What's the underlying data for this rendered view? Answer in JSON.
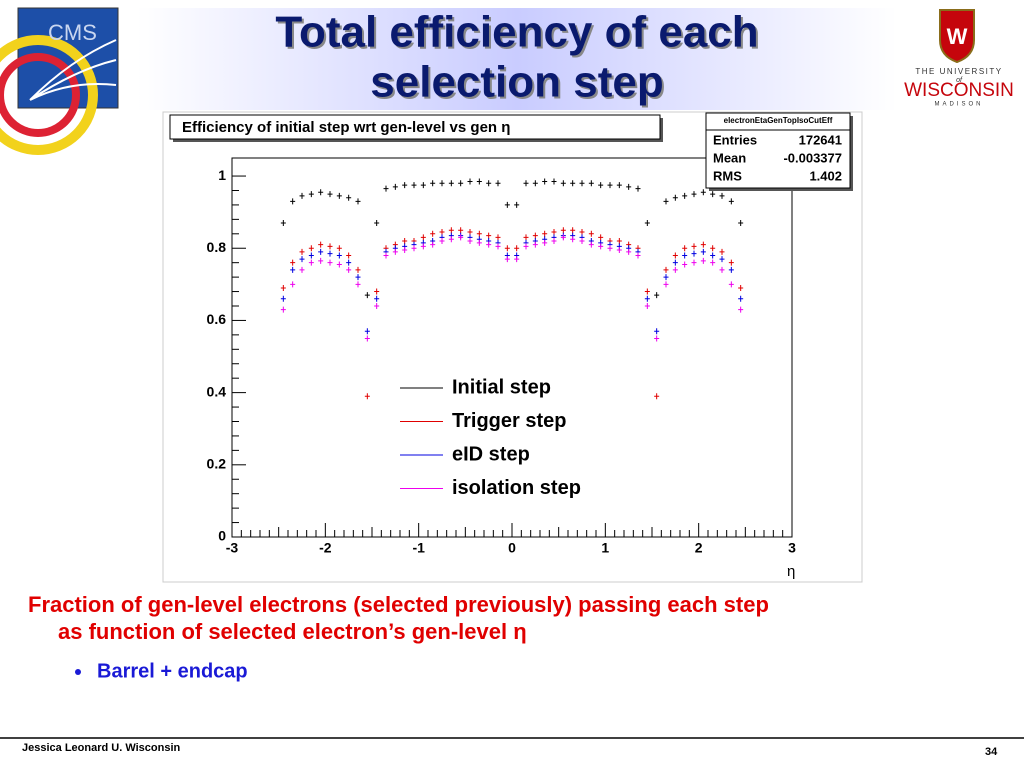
{
  "slide": {
    "title_lines": [
      "Total efficiency of each",
      "selection step"
    ],
    "body_lines": [
      "Fraction of gen-level electrons (selected previously) passing each step",
      "as function of selected electron’s gen-level η"
    ],
    "bullet": "Barrel + endcap",
    "footer": "Jessica Leonard U. Wisconsin",
    "page_number": "34",
    "logos": {
      "cms": "CMS",
      "university_top": "THE UNIVERSITY",
      "university_of": "of",
      "university_name": "WISCONSIN",
      "university_city": "MADISON"
    }
  },
  "chart_data": {
    "type": "scatter",
    "title": "Efficiency of initial step wrt gen-level vs gen η",
    "x_label": "η",
    "stats": {
      "name": "electronEtaGenTopIsoCutEff",
      "labels": [
        "Entries",
        "Mean",
        "RMS"
      ],
      "values": [
        172641,
        -0.003377,
        1.402
      ]
    },
    "xlim": [
      -3,
      3
    ],
    "ylim": [
      0,
      1.05
    ],
    "xticks": [
      -3,
      -2,
      -1,
      0,
      1,
      2,
      3
    ],
    "yticks": [
      0,
      0.2,
      0.4,
      0.6,
      0.8,
      1
    ],
    "legend": "center",
    "x": [
      -2.45,
      -2.35,
      -2.25,
      -2.15,
      -2.05,
      -1.95,
      -1.85,
      -1.75,
      -1.65,
      -1.55,
      -1.45,
      -1.35,
      -1.25,
      -1.15,
      -1.05,
      -0.95,
      -0.85,
      -0.75,
      -0.65,
      -0.55,
      -0.45,
      -0.35,
      -0.25,
      -0.15,
      -0.05,
      0.05,
      0.15,
      0.25,
      0.35,
      0.45,
      0.55,
      0.65,
      0.75,
      0.85,
      0.95,
      1.05,
      1.15,
      1.25,
      1.35,
      1.45,
      1.55,
      1.65,
      1.75,
      1.85,
      1.95,
      2.05,
      2.15,
      2.25,
      2.35,
      2.45
    ],
    "series": [
      {
        "name": "Initial step",
        "color": "#000000",
        "values": [
          0.87,
          0.93,
          0.945,
          0.95,
          0.955,
          0.95,
          0.945,
          0.94,
          0.93,
          0.67,
          0.87,
          0.965,
          0.97,
          0.975,
          0.975,
          0.975,
          0.98,
          0.98,
          0.98,
          0.98,
          0.985,
          0.985,
          0.98,
          0.98,
          0.92,
          0.92,
          0.98,
          0.98,
          0.985,
          0.985,
          0.98,
          0.98,
          0.98,
          0.98,
          0.975,
          0.975,
          0.975,
          0.97,
          0.965,
          0.87,
          0.67,
          0.93,
          0.94,
          0.945,
          0.95,
          0.955,
          0.95,
          0.945,
          0.93,
          0.87
        ]
      },
      {
        "name": "Trigger step",
        "color": "#e00000",
        "values": [
          0.69,
          0.76,
          0.79,
          0.8,
          0.81,
          0.805,
          0.8,
          0.78,
          0.74,
          0.39,
          0.68,
          0.8,
          0.81,
          0.82,
          0.82,
          0.83,
          0.84,
          0.845,
          0.85,
          0.85,
          0.845,
          0.84,
          0.835,
          0.83,
          0.8,
          0.8,
          0.83,
          0.835,
          0.84,
          0.845,
          0.85,
          0.85,
          0.845,
          0.84,
          0.83,
          0.82,
          0.82,
          0.81,
          0.8,
          0.68,
          0.39,
          0.74,
          0.78,
          0.8,
          0.805,
          0.81,
          0.8,
          0.79,
          0.76,
          0.69
        ]
      },
      {
        "name": "eID step",
        "color": "#0000e0",
        "values": [
          0.66,
          0.74,
          0.77,
          0.78,
          0.79,
          0.785,
          0.78,
          0.76,
          0.72,
          0.57,
          0.66,
          0.79,
          0.8,
          0.805,
          0.81,
          0.815,
          0.82,
          0.83,
          0.835,
          0.835,
          0.83,
          0.825,
          0.82,
          0.815,
          0.78,
          0.78,
          0.815,
          0.82,
          0.825,
          0.83,
          0.835,
          0.835,
          0.83,
          0.82,
          0.815,
          0.81,
          0.805,
          0.8,
          0.79,
          0.66,
          0.57,
          0.72,
          0.76,
          0.78,
          0.785,
          0.79,
          0.78,
          0.77,
          0.74,
          0.66
        ]
      },
      {
        "name": "isolation step",
        "color": "#ee00ee",
        "values": [
          0.63,
          0.7,
          0.74,
          0.76,
          0.765,
          0.76,
          0.755,
          0.74,
          0.7,
          0.55,
          0.64,
          0.78,
          0.79,
          0.795,
          0.8,
          0.805,
          0.81,
          0.82,
          0.825,
          0.83,
          0.82,
          0.815,
          0.81,
          0.805,
          0.77,
          0.77,
          0.805,
          0.81,
          0.815,
          0.82,
          0.83,
          0.825,
          0.82,
          0.81,
          0.805,
          0.8,
          0.795,
          0.79,
          0.78,
          0.64,
          0.55,
          0.7,
          0.74,
          0.755,
          0.76,
          0.765,
          0.76,
          0.74,
          0.7,
          0.63
        ]
      }
    ]
  }
}
